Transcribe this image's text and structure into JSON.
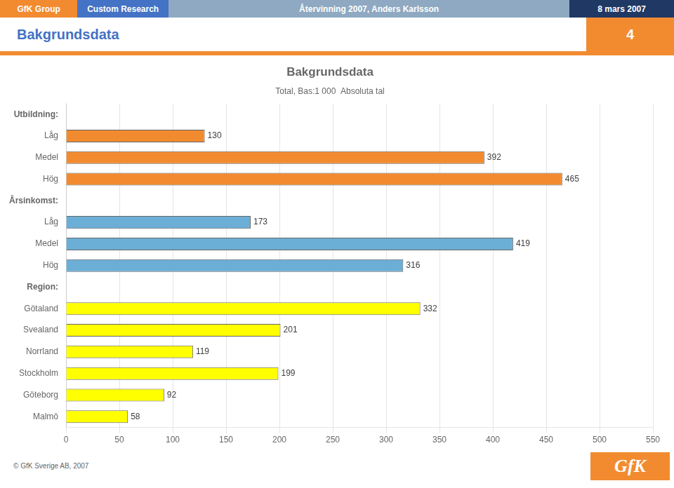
{
  "chart_data": {
    "type": "bar",
    "orientation": "horizontal",
    "title": "Bakgrundsdata",
    "subtitle": "Total, Bas:1 000  Absoluta tal",
    "annotations": [
      "GfK Group",
      "Custom Research",
      "Återvinning 2007, Anders Karlsson",
      "8 mars 2007",
      "Bakgrundsdata",
      "4",
      "© GfK Sverige AB, 2007",
      "GfK"
    ],
    "categories": [
      "Utbildning:",
      "Låg",
      "Medel",
      "Hög",
      "Årsinkomst:",
      "Låg",
      "Medel",
      "Hög",
      "Region:",
      "Götaland",
      "Svealand",
      "Norrland",
      "Stockholm",
      "Göteborg",
      "Malmö"
    ],
    "values": [
      null,
      130,
      392,
      465,
      null,
      173,
      419,
      316,
      null,
      332,
      201,
      119,
      199,
      92,
      58
    ],
    "colors": [
      null,
      "#F28B30",
      "#F28B30",
      "#F28B30",
      null,
      "#6BAED6",
      "#6BAED6",
      "#6BAED6",
      null,
      "#FFFF00",
      "#FFFF00",
      "#FFFF00",
      "#FFFF00",
      "#FFFF00",
      "#FFFF00"
    ],
    "xlim": [
      0,
      550
    ],
    "xticks": [
      0,
      50,
      100,
      150,
      200,
      250,
      300,
      350,
      400,
      450,
      500,
      550
    ],
    "grid": true,
    "data_labels": true
  }
}
